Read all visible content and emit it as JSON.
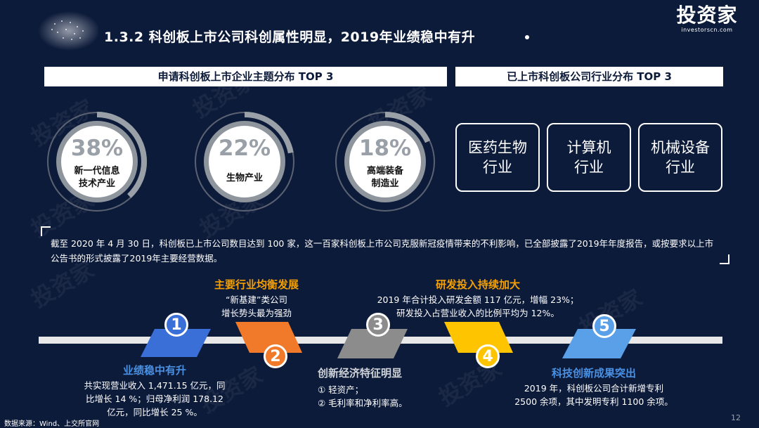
{
  "slide": {
    "title": "1.3.2 科创板上市公司科创属性明显，2019年业绩稳中有升",
    "page_number": "12",
    "source": "数据来源：Wind、上交所官网"
  },
  "logo": {
    "main": "投资家",
    "sub": "investorscn.com"
  },
  "watermark": "投资家",
  "left_panel": {
    "header": "申请科创板上市企业主题分布 TOP 3",
    "rings": [
      {
        "percent": "38%",
        "value": 0.38,
        "label_lines": [
          "新一代信息",
          "技术产业"
        ]
      },
      {
        "percent": "22%",
        "value": 0.22,
        "label_lines": [
          "生物产业"
        ]
      },
      {
        "percent": "18%",
        "value": 0.18,
        "label_lines": [
          "高端装备",
          "制造业"
        ]
      }
    ]
  },
  "right_panel": {
    "header": "已上市科创板公司行业分布 TOP 3",
    "industries": [
      {
        "lines": [
          "医药生物",
          "行业"
        ]
      },
      {
        "lines": [
          "计算机",
          "行业"
        ]
      },
      {
        "lines": [
          "机械设备",
          "行业"
        ]
      }
    ]
  },
  "quote": {
    "text": "截至 2020 年 4 月 30 日，科创板已上市公司数目达到 100 家，这一百家科创板上市公司克服新冠疫情带来的不利影响，已全部披露了2019年年度报告，或按要求以上市公告书的形式披露了2019年主要经营数据。"
  },
  "colors": {
    "background": "#0d1b3a",
    "ring_gray": "#9aa0a8",
    "step1": "#3b6fd8",
    "step2": "#f07a2a",
    "step3": "#8c8c8c",
    "step4": "#ffc400",
    "step5": "#5aa0e8",
    "orange_text": "#f5a000",
    "blue_text": "#4a90e2"
  },
  "steps": [
    {
      "num": "1",
      "head": "业绩稳中有升",
      "lines": [
        "共实现营业收入 1,471.15 亿元，同",
        "比增长 14 %；归母净利润 178.12",
        "亿元，同比增长 25 %。"
      ]
    },
    {
      "num": "2",
      "head": "主要行业均衡发展",
      "lines": [
        "“新基建”类公司",
        "增长势头最为强劲"
      ]
    },
    {
      "num": "3",
      "head": "创新经济特征明显",
      "lines": [
        "① 轻资产；",
        "② 毛利率和净利率高。"
      ]
    },
    {
      "num": "4",
      "head": "研发投入持续加大",
      "lines": [
        "2019 年合计投入研发金额 117 亿元，增幅 23%；",
        "研发投入占营业收入的比例平均为 12%。"
      ]
    },
    {
      "num": "5",
      "head": "科技创新成果突出",
      "lines": [
        "2019 年，科创板公司合计新增专利",
        "2500 余项，其中发明专利 1100 余项。"
      ]
    }
  ]
}
